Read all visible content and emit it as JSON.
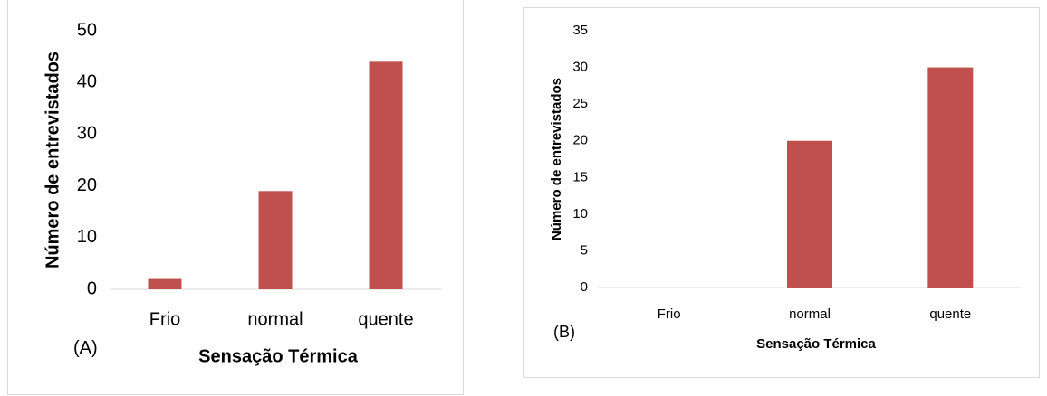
{
  "panels": [
    {
      "label": "(A)",
      "chart_data": {
        "type": "bar",
        "categories": [
          "Frio",
          "normal",
          "quente"
        ],
        "values": [
          2,
          19,
          44
        ],
        "title": "",
        "xlabel": "Sensação Térmica",
        "ylabel": "Número de entrevistados",
        "ylim": [
          0,
          50
        ],
        "yticks": [
          0,
          10,
          20,
          30,
          40,
          50
        ],
        "grid": false,
        "legend": "none",
        "bar_color": "#C0504D"
      }
    },
    {
      "label": "(B)",
      "chart_data": {
        "type": "bar",
        "categories": [
          "Frio",
          "normal",
          "quente"
        ],
        "values": [
          0,
          20,
          30
        ],
        "title": "",
        "xlabel": "Sensação Térmica",
        "ylabel": "Número de entrevistados",
        "ylim": [
          0,
          35
        ],
        "yticks": [
          0,
          5,
          10,
          15,
          20,
          25,
          30,
          35
        ],
        "grid": false,
        "legend": "none",
        "bar_color": "#C0504D"
      }
    }
  ],
  "chart_data": [
    {
      "type": "bar",
      "categories": [
        "Frio",
        "normal",
        "quente"
      ],
      "values": [
        2,
        19,
        44
      ],
      "title": "",
      "xlabel": "Sensação Térmica",
      "ylabel": "Número de entrevistados",
      "ylim": [
        0,
        50
      ]
    },
    {
      "type": "bar",
      "categories": [
        "Frio",
        "normal",
        "quente"
      ],
      "values": [
        0,
        20,
        30
      ],
      "title": "",
      "xlabel": "Sensação Térmica",
      "ylabel": "Número de entrevistados",
      "ylim": [
        0,
        35
      ]
    }
  ]
}
